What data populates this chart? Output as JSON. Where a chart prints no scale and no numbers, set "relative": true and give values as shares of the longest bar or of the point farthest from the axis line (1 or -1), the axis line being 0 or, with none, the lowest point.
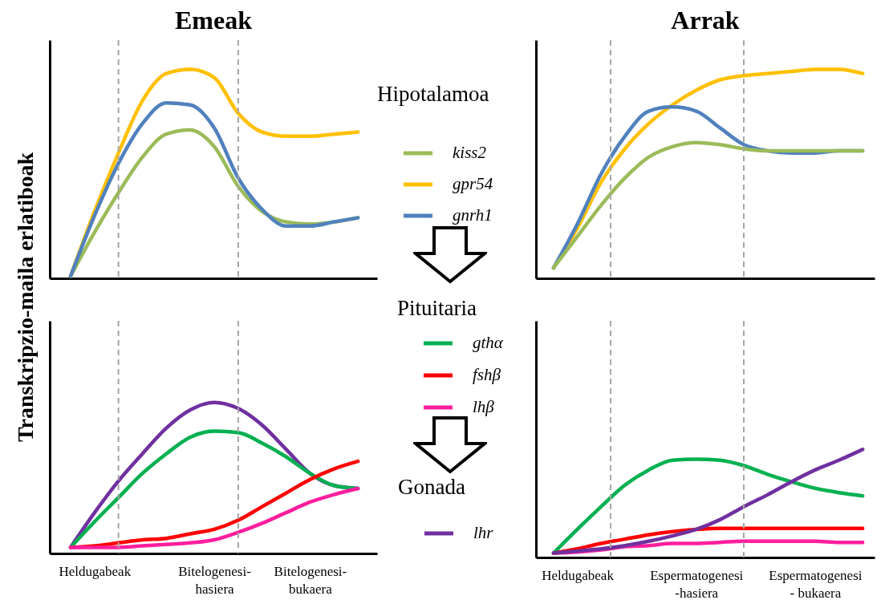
{
  "chart_data": [
    {
      "type": "line",
      "title": "Emeak",
      "ylabel": "Transkripzio-maila erlatiboak",
      "legend_title": "Hipotalamoa",
      "legend": "right",
      "relative": true,
      "marker": "none",
      "line_style": "solid",
      "tick_labels": false,
      "categories": [
        null,
        null,
        null,
        null,
        null,
        null,
        null,
        null,
        null,
        null,
        null,
        null,
        null
      ],
      "series": [
        {
          "name": "kiss2",
          "color": "#9bbb59",
          "values": [
            0.01,
            0.22,
            0.41,
            0.58,
            0.69,
            0.71,
            0.63,
            0.44,
            0.32,
            0.27,
            0.26,
            0.27,
            0.29
          ]
        },
        {
          "name": "gpr54",
          "color": "#ffc000",
          "values": [
            0.01,
            0.32,
            0.6,
            0.85,
            0.98,
            1.0,
            0.96,
            0.79,
            0.7,
            0.68,
            0.68,
            0.69,
            0.7
          ]
        },
        {
          "name": "gnrh1",
          "color": "#4f81bd",
          "values": [
            0.01,
            0.3,
            0.55,
            0.74,
            0.84,
            0.83,
            0.72,
            0.48,
            0.33,
            0.25,
            0.25,
            0.27,
            0.29
          ]
        }
      ]
    },
    {
      "type": "line",
      "title": "Arrak",
      "relative": true,
      "marker": "none",
      "line_style": "solid",
      "tick_labels": false,
      "categories": [
        null,
        null,
        null,
        null,
        null,
        null,
        null,
        null,
        null,
        null,
        null,
        null,
        null,
        null
      ],
      "series": [
        {
          "color": "#ffc000",
          "values": [
            0.05,
            0.24,
            0.46,
            0.62,
            0.74,
            0.83,
            0.9,
            0.95,
            0.97,
            0.98,
            0.99,
            1.0,
            1.0,
            0.98
          ]
        },
        {
          "color": "#4f81bd",
          "values": [
            0.05,
            0.26,
            0.5,
            0.68,
            0.8,
            0.82,
            0.8,
            0.72,
            0.64,
            0.61,
            0.6,
            0.6,
            0.61,
            0.61
          ]
        },
        {
          "color": "#9bbb59",
          "values": [
            0.05,
            0.2,
            0.35,
            0.48,
            0.58,
            0.63,
            0.65,
            0.64,
            0.62,
            0.61,
            0.61,
            0.61,
            0.61,
            0.61
          ]
        }
      ]
    },
    {
      "type": "line",
      "legend_title": "Pituitaria",
      "legend": "right",
      "relative": true,
      "marker": "none",
      "line_style": "solid",
      "tick_labels": "x",
      "categories": [
        null,
        "Heldugabeak",
        null,
        null,
        null,
        null,
        "Bitelogenesi-\nhasiera",
        null,
        null,
        null,
        "Bitelogenesi-\nbukaera",
        null,
        null
      ],
      "series": [
        {
          "color": "#7030a0",
          "values": [
            0.04,
            0.27,
            0.48,
            0.66,
            0.83,
            0.95,
            1.0,
            0.96,
            0.85,
            0.69,
            0.53,
            0.45,
            0.43
          ]
        },
        {
          "name": "gthα",
          "color": "#00b050",
          "values": [
            0.04,
            0.21,
            0.37,
            0.53,
            0.66,
            0.77,
            0.81,
            0.8,
            0.73,
            0.64,
            0.53,
            0.45,
            0.43
          ]
        },
        {
          "name": "fshβ",
          "color": "#ff0000",
          "values": [
            0.04,
            0.05,
            0.07,
            0.09,
            0.1,
            0.13,
            0.16,
            0.22,
            0.31,
            0.4,
            0.49,
            0.56,
            0.61
          ]
        },
        {
          "name": "lhβ",
          "color": "#ff1e9e",
          "values": [
            0.04,
            0.04,
            0.04,
            0.05,
            0.06,
            0.07,
            0.09,
            0.14,
            0.2,
            0.27,
            0.34,
            0.39,
            0.43
          ]
        }
      ]
    },
    {
      "type": "line",
      "legend_title": "Gonada",
      "legend": "left",
      "relative": true,
      "marker": "none",
      "line_style": "solid",
      "tick_labels": "x",
      "categories": [
        null,
        "Heldugabeak",
        null,
        null,
        null,
        null,
        "Espermatogenesi\n-hasiera",
        null,
        null,
        null,
        null,
        "Espermatogenesi\n- bukaera",
        null,
        null
      ],
      "series": [
        {
          "color": "#00b050",
          "values": [
            0.04,
            0.26,
            0.47,
            0.67,
            0.81,
            0.9,
            0.91,
            0.9,
            0.85,
            0.77,
            0.7,
            0.64,
            0.6,
            0.57
          ]
        },
        {
          "color": "#ff0000",
          "values": [
            0.04,
            0.08,
            0.13,
            0.17,
            0.21,
            0.24,
            0.26,
            0.27,
            0.27,
            0.27,
            0.27,
            0.27,
            0.27,
            0.27
          ]
        },
        {
          "color": "#ff1e9e",
          "values": [
            0.04,
            0.05,
            0.07,
            0.1,
            0.11,
            0.13,
            0.13,
            0.14,
            0.15,
            0.15,
            0.15,
            0.15,
            0.14,
            0.14
          ]
        },
        {
          "name": "lhr",
          "color": "#7030a0",
          "values": [
            0.04,
            0.06,
            0.08,
            0.11,
            0.15,
            0.2,
            0.26,
            0.35,
            0.47,
            0.58,
            0.7,
            0.81,
            0.9,
            1.0
          ]
        }
      ]
    }
  ]
}
